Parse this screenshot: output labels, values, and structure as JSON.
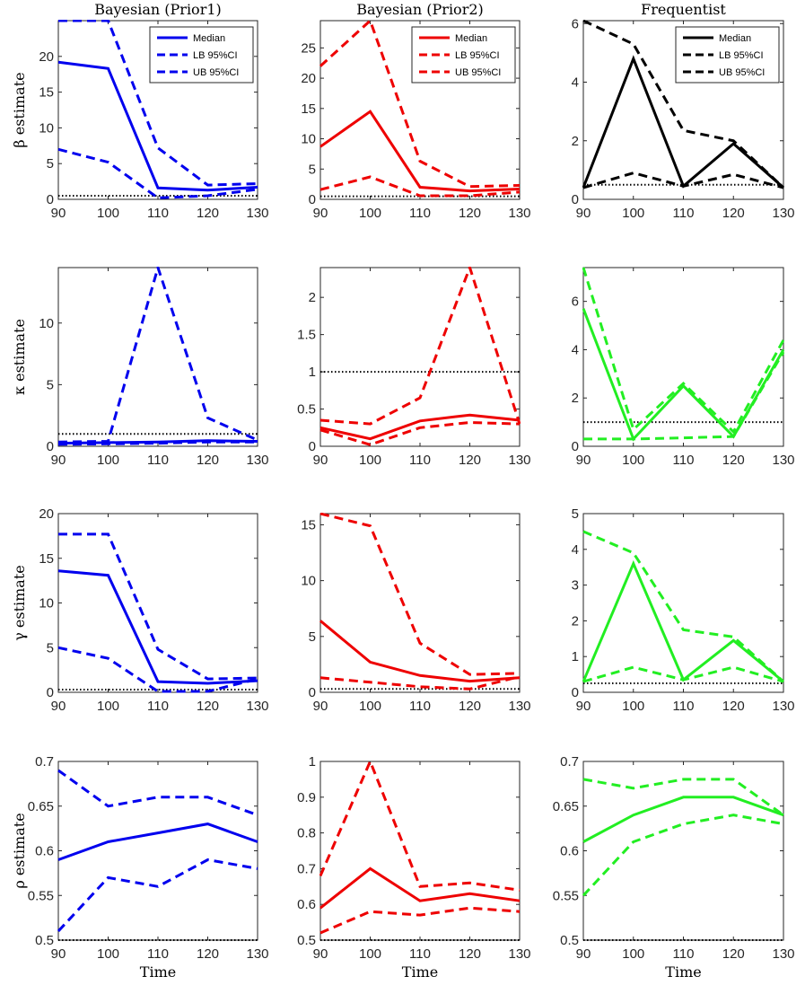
{
  "chart_data": [
    {
      "type": "line",
      "title": "Bayesian (Prior1)",
      "ylabel": "β estimate",
      "xlabel": "",
      "x": [
        90,
        100,
        110,
        120,
        130
      ],
      "xlim": [
        90,
        130
      ],
      "ylim": [
        0,
        25
      ],
      "yticks": [
        0,
        5,
        10,
        15,
        20
      ],
      "color": "#0000ee",
      "reference_line": 0.5,
      "legend": "top-right",
      "series": [
        {
          "name": "Median",
          "style": "solid",
          "values": [
            19.2,
            18.3,
            1.6,
            1.3,
            1.7
          ]
        },
        {
          "name": "LB 95%CI",
          "style": "dashed",
          "values": [
            7.0,
            5.2,
            0.2,
            0.5,
            1.4
          ]
        },
        {
          "name": "UB 95%CI",
          "style": "dashed",
          "values": [
            25.0,
            25.0,
            7.2,
            2.0,
            2.2
          ]
        }
      ]
    },
    {
      "type": "line",
      "title": "Bayesian (Prior2)",
      "ylabel": "",
      "xlabel": "",
      "x": [
        90,
        100,
        110,
        120,
        130
      ],
      "xlim": [
        90,
        130
      ],
      "ylim": [
        0,
        29.5
      ],
      "yticks": [
        0,
        5,
        10,
        15,
        20,
        25
      ],
      "color": "#ee0000",
      "reference_line": 0.5,
      "legend": "top-right",
      "series": [
        {
          "name": "Median",
          "style": "solid",
          "values": [
            8.7,
            14.5,
            2.0,
            1.4,
            1.7
          ]
        },
        {
          "name": "LB 95%CI",
          "style": "dashed",
          "values": [
            1.6,
            3.7,
            0.6,
            0.6,
            1.2
          ]
        },
        {
          "name": "UB 95%CI",
          "style": "dashed",
          "values": [
            22.0,
            29.5,
            6.3,
            2.1,
            2.3
          ]
        }
      ]
    },
    {
      "type": "line",
      "title": "Frequentist",
      "ylabel": "",
      "xlabel": "",
      "x": [
        90,
        100,
        110,
        120,
        130
      ],
      "xlim": [
        90,
        130
      ],
      "ylim": [
        0,
        6.1
      ],
      "yticks": [
        0,
        2,
        4,
        6
      ],
      "color": "#000000",
      "reference_line": 0.5,
      "legend": "top-right",
      "series": [
        {
          "name": "Median",
          "style": "solid",
          "values": [
            0.4,
            4.8,
            0.45,
            1.9,
            0.4
          ]
        },
        {
          "name": "LB 95%CI",
          "style": "dashed",
          "values": [
            0.4,
            0.9,
            0.45,
            0.85,
            0.4
          ]
        },
        {
          "name": "UB 95%CI",
          "style": "dashed",
          "values": [
            6.1,
            5.3,
            2.35,
            2.0,
            0.4
          ]
        }
      ]
    },
    {
      "type": "line",
      "title": "",
      "ylabel": "κ estimate",
      "xlabel": "",
      "x": [
        90,
        100,
        110,
        120,
        130
      ],
      "xlim": [
        90,
        130
      ],
      "ylim": [
        0,
        14.5
      ],
      "yticks": [
        0,
        5,
        10
      ],
      "color": "#0000ee",
      "reference_line": 1,
      "series": [
        {
          "style": "solid",
          "values": [
            0.25,
            0.3,
            0.35,
            0.45,
            0.4
          ]
        },
        {
          "style": "dashed",
          "values": [
            0.15,
            0.2,
            0.25,
            0.35,
            0.35
          ]
        },
        {
          "style": "dashed",
          "values": [
            0.35,
            0.4,
            14.5,
            2.3,
            0.5
          ]
        }
      ]
    },
    {
      "type": "line",
      "title": "",
      "ylabel": "",
      "xlabel": "",
      "x": [
        90,
        100,
        110,
        120,
        130
      ],
      "xlim": [
        90,
        130
      ],
      "ylim": [
        0,
        2.4
      ],
      "yticks": [
        0,
        0.5,
        1,
        1.5,
        2
      ],
      "color": "#ee0000",
      "reference_line": 1,
      "series": [
        {
          "style": "solid",
          "values": [
            0.25,
            0.1,
            0.34,
            0.42,
            0.35
          ]
        },
        {
          "style": "dashed",
          "values": [
            0.22,
            0.02,
            0.25,
            0.32,
            0.3
          ]
        },
        {
          "style": "dashed",
          "values": [
            0.35,
            0.3,
            0.65,
            2.4,
            0.3
          ]
        }
      ]
    },
    {
      "type": "line",
      "title": "",
      "ylabel": "",
      "xlabel": "",
      "x": [
        90,
        100,
        110,
        120,
        130
      ],
      "xlim": [
        90,
        130
      ],
      "ylim": [
        0,
        7.4
      ],
      "yticks": [
        0,
        2,
        4,
        6
      ],
      "color": "#22ee22",
      "reference_line": 1,
      "series": [
        {
          "style": "solid",
          "values": [
            5.7,
            0.3,
            2.5,
            0.4,
            4.0
          ]
        },
        {
          "style": "dashed",
          "values": [
            0.3,
            0.3,
            0.35,
            0.4,
            3.9
          ]
        },
        {
          "style": "dashed",
          "values": [
            7.4,
            0.7,
            2.6,
            0.6,
            4.4
          ]
        }
      ]
    },
    {
      "type": "line",
      "title": "",
      "ylabel": "γ estimate",
      "xlabel": "",
      "x": [
        90,
        100,
        110,
        120,
        130
      ],
      "xlim": [
        90,
        130
      ],
      "ylim": [
        0,
        20
      ],
      "yticks": [
        0,
        5,
        10,
        15,
        20
      ],
      "color": "#0000ee",
      "reference_line": 0.3,
      "series": [
        {
          "style": "solid",
          "values": [
            13.6,
            13.1,
            1.2,
            1.0,
            1.3
          ]
        },
        {
          "style": "dashed",
          "values": [
            5.0,
            3.8,
            0.1,
            0.1,
            1.5
          ]
        },
        {
          "style": "dashed",
          "values": [
            17.7,
            17.7,
            4.8,
            1.5,
            1.6
          ]
        }
      ]
    },
    {
      "type": "line",
      "title": "",
      "ylabel": "",
      "xlabel": "",
      "x": [
        90,
        100,
        110,
        120,
        130
      ],
      "xlim": [
        90,
        130
      ],
      "ylim": [
        0,
        16
      ],
      "yticks": [
        0,
        5,
        10,
        15
      ],
      "color": "#ee0000",
      "reference_line": 0.3,
      "series": [
        {
          "style": "solid",
          "values": [
            6.4,
            2.7,
            1.5,
            1.0,
            1.3
          ]
        },
        {
          "style": "dashed",
          "values": [
            1.3,
            0.9,
            0.5,
            0.3,
            1.4
          ]
        },
        {
          "style": "dashed",
          "values": [
            16.0,
            14.9,
            4.4,
            1.6,
            1.7
          ]
        }
      ]
    },
    {
      "type": "line",
      "title": "",
      "ylabel": "",
      "xlabel": "",
      "x": [
        90,
        100,
        110,
        120,
        130
      ],
      "xlim": [
        90,
        130
      ],
      "ylim": [
        0,
        5
      ],
      "yticks": [
        0,
        1,
        2,
        3,
        4,
        5
      ],
      "color": "#22ee22",
      "reference_line": 0.25,
      "series": [
        {
          "style": "solid",
          "values": [
            0.3,
            3.6,
            0.35,
            1.45,
            0.3
          ]
        },
        {
          "style": "dashed",
          "values": [
            0.3,
            0.7,
            0.35,
            0.7,
            0.3
          ]
        },
        {
          "style": "dashed",
          "values": [
            4.5,
            3.9,
            1.75,
            1.55,
            0.3
          ]
        }
      ]
    },
    {
      "type": "line",
      "title": "",
      "ylabel": "ρ estimate",
      "xlabel": "Time",
      "x": [
        90,
        100,
        110,
        120,
        130
      ],
      "xlim": [
        90,
        130
      ],
      "ylim": [
        0.5,
        0.7
      ],
      "yticks": [
        0.5,
        0.55,
        0.6,
        0.65,
        0.7
      ],
      "color": "#0000ee",
      "reference_line": 0.5,
      "series": [
        {
          "style": "solid",
          "values": [
            0.59,
            0.61,
            0.62,
            0.63,
            0.61
          ]
        },
        {
          "style": "dashed",
          "values": [
            0.51,
            0.57,
            0.56,
            0.59,
            0.58
          ]
        },
        {
          "style": "dashed",
          "values": [
            0.69,
            0.65,
            0.66,
            0.66,
            0.64
          ]
        }
      ]
    },
    {
      "type": "line",
      "title": "",
      "ylabel": "",
      "xlabel": "Time",
      "x": [
        90,
        100,
        110,
        120,
        130
      ],
      "xlim": [
        90,
        130
      ],
      "ylim": [
        0.5,
        1.0
      ],
      "yticks": [
        0.5,
        0.6,
        0.7,
        0.8,
        0.9,
        1
      ],
      "color": "#ee0000",
      "reference_line": 0.5,
      "series": [
        {
          "style": "solid",
          "values": [
            0.59,
            0.7,
            0.61,
            0.63,
            0.61
          ]
        },
        {
          "style": "dashed",
          "values": [
            0.52,
            0.58,
            0.57,
            0.59,
            0.58
          ]
        },
        {
          "style": "dashed",
          "values": [
            0.68,
            1.0,
            0.65,
            0.66,
            0.64
          ]
        }
      ]
    },
    {
      "type": "line",
      "title": "",
      "ylabel": "",
      "xlabel": "Time",
      "x": [
        90,
        100,
        110,
        120,
        130
      ],
      "xlim": [
        90,
        130
      ],
      "ylim": [
        0.5,
        0.7
      ],
      "yticks": [
        0.5,
        0.55,
        0.6,
        0.65,
        0.7
      ],
      "color": "#22ee22",
      "reference_line": 0.5,
      "series": [
        {
          "style": "solid",
          "values": [
            0.61,
            0.64,
            0.66,
            0.66,
            0.64
          ]
        },
        {
          "style": "dashed",
          "values": [
            0.55,
            0.61,
            0.63,
            0.64,
            0.63
          ]
        },
        {
          "style": "dashed",
          "values": [
            0.68,
            0.67,
            0.68,
            0.68,
            0.64
          ]
        }
      ]
    }
  ]
}
